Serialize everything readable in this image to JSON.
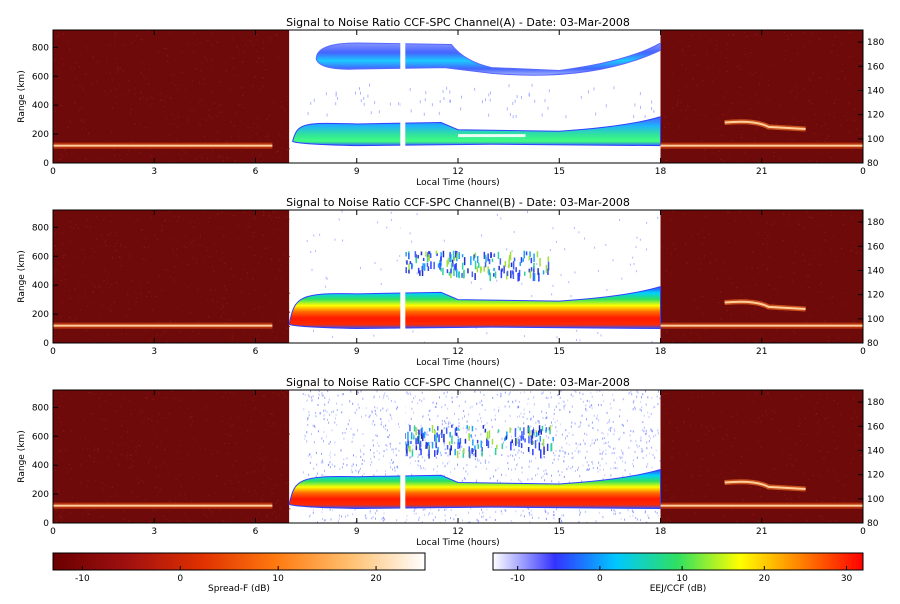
{
  "chart_data": [
    {
      "type": "heatmap",
      "title": "Signal to Noise Ratio CCF-SPC Channel(A) - Date: 03-Mar-2008",
      "xlabel": "Local Time (hours)",
      "ylabel": "Range (km)",
      "x_ticks": [
        "0",
        "3",
        "6",
        "9",
        "12",
        "15",
        "18",
        "21",
        "0"
      ],
      "y_ticks": [
        "0",
        "200",
        "400",
        "600",
        "800"
      ],
      "y2_ticks": [
        "80",
        "100",
        "120",
        "140",
        "160",
        "180"
      ],
      "x_range_hours": [
        0,
        24
      ],
      "y_range_km": [
        0,
        920
      ],
      "y2_range": [
        80,
        190
      ],
      "daytime_window_hours": [
        7,
        18
      ],
      "gap_hours": 10.35,
      "regions": [
        {
          "kind": "night",
          "hours": [
            0,
            7
          ],
          "note": "Spread-F scale"
        },
        {
          "kind": "day",
          "hours": [
            7,
            18
          ],
          "note": "EEJ/CCF scale"
        },
        {
          "kind": "night",
          "hours": [
            18,
            24
          ],
          "note": "Spread-F scale"
        }
      ],
      "features": [
        {
          "name": "upper-echo",
          "hours": [
            7.8,
            18
          ],
          "range_km": [
            560,
            830
          ],
          "level_db": 6
        },
        {
          "name": "lower-echo",
          "hours": [
            7.1,
            18
          ],
          "range_km": [
            120,
            320
          ],
          "level_db": 8
        },
        {
          "name": "night-layer",
          "hours": [
            0,
            24
          ],
          "range_km": [
            100,
            140
          ],
          "level_db": 18
        }
      ]
    },
    {
      "type": "heatmap",
      "title": "Signal to Noise Ratio CCF-SPC Channel(B) - Date: 03-Mar-2008",
      "xlabel": "Local Time (hours)",
      "ylabel": "Range (km)",
      "x_ticks": [
        "0",
        "3",
        "6",
        "9",
        "12",
        "15",
        "18",
        "21",
        "0"
      ],
      "y_ticks": [
        "0",
        "200",
        "400",
        "600",
        "800"
      ],
      "y2_ticks": [
        "80",
        "100",
        "120",
        "140",
        "160",
        "180"
      ],
      "x_range_hours": [
        0,
        24
      ],
      "y_range_km": [
        0,
        920
      ],
      "y2_range": [
        80,
        190
      ],
      "daytime_window_hours": [
        7,
        18
      ],
      "gap_hours": 10.35,
      "features": [
        {
          "name": "upper-echo",
          "hours": [
            10.4,
            14.7
          ],
          "range_km": [
            480,
            640
          ],
          "level_db": 4
        },
        {
          "name": "lower-echo",
          "hours": [
            7,
            18
          ],
          "range_km": [
            100,
            390
          ],
          "level_db": 28
        },
        {
          "name": "night-layer",
          "hours": [
            0,
            24
          ],
          "range_km": [
            100,
            140
          ],
          "level_db": 18
        }
      ]
    },
    {
      "type": "heatmap",
      "title": "Signal to Noise Ratio CCF-SPC Channel(C) - Date: 03-Mar-2008",
      "xlabel": "Local Time (hours)",
      "ylabel": "Range (km)",
      "x_ticks": [
        "0",
        "3",
        "6",
        "9",
        "12",
        "15",
        "18",
        "21",
        "0"
      ],
      "y_ticks": [
        "0",
        "200",
        "400",
        "600",
        "800"
      ],
      "y2_ticks": [
        "80",
        "100",
        "120",
        "140",
        "160",
        "180"
      ],
      "x_range_hours": [
        0,
        24
      ],
      "y_range_km": [
        0,
        920
      ],
      "y2_range": [
        80,
        190
      ],
      "daytime_window_hours": [
        7,
        18
      ],
      "gap_hours": 10.35,
      "features": [
        {
          "name": "upper-echo",
          "hours": [
            10.4,
            14.8
          ],
          "range_km": [
            500,
            680
          ],
          "level_db": 4
        },
        {
          "name": "lower-echo",
          "hours": [
            7,
            18
          ],
          "range_km": [
            100,
            370
          ],
          "level_db": 28
        },
        {
          "name": "night-layer",
          "hours": [
            0,
            24
          ],
          "range_km": [
            100,
            140
          ],
          "level_db": 18
        }
      ]
    }
  ],
  "colorbars": [
    {
      "label": "Spread-F (dB)",
      "ticks": [
        -10,
        0,
        10,
        20
      ],
      "range": [
        -13,
        25
      ],
      "colors": [
        "#6b0000",
        "#a01010",
        "#e03000",
        "#ff7a10",
        "#ffc070",
        "#ffffff"
      ]
    },
    {
      "label": "EEJ/CCF (dB)",
      "ticks": [
        -10,
        0,
        10,
        20,
        30
      ],
      "range": [
        -13,
        32
      ],
      "colors": [
        "#ffffff",
        "#3333ff",
        "#00c8ff",
        "#30e060",
        "#ffff00",
        "#ff8000",
        "#ff0000"
      ]
    }
  ],
  "colors": {
    "night_background": "#6e0a0a",
    "night_speckle": "#8c1a10",
    "day_background": "#ffffff",
    "night_layer": "#ffcf9a"
  }
}
